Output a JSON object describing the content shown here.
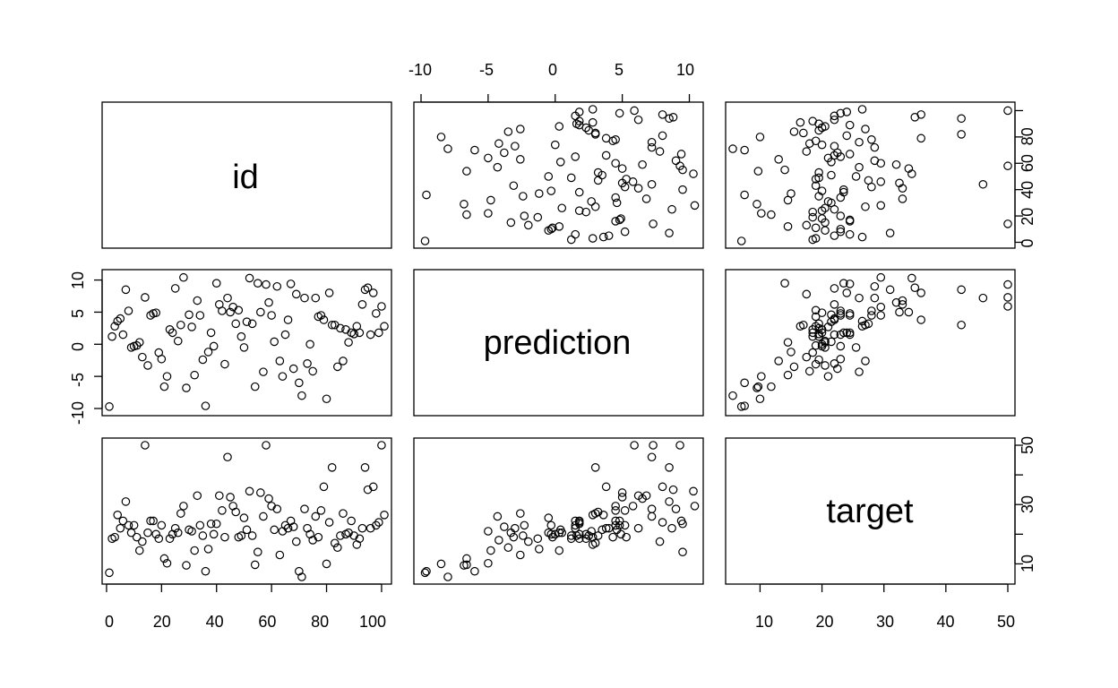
{
  "chart_data": {
    "type": "scatter",
    "kind": "scatterplot-matrix",
    "title": "",
    "variables": [
      "id",
      "prediction",
      "target"
    ],
    "ranges": {
      "id": [
        1,
        101
      ],
      "prediction": [
        -10,
        10.5
      ],
      "target": [
        5.6,
        50
      ]
    },
    "ticks": {
      "id": [
        0,
        20,
        40,
        60,
        80,
        100
      ],
      "prediction": [
        -10,
        -5,
        0,
        5,
        10
      ],
      "target": [
        10,
        20,
        30,
        40,
        50
      ]
    },
    "tick_labels": {
      "id": [
        "0",
        "20",
        "40",
        "60",
        "80",
        "100"
      ],
      "prediction": [
        "-10",
        "-5",
        "0",
        "5",
        "10"
      ],
      "target_bottom": [
        "10",
        "20",
        "30",
        "40",
        "50"
      ],
      "id_right": [
        "0",
        "20",
        "40",
        "60",
        "80"
      ],
      "prediction_left": [
        "-10",
        "-5",
        "0",
        "5",
        "10"
      ],
      "target_right": [
        "10",
        "30",
        "50"
      ]
    },
    "grid": false,
    "legend": "none",
    "points": [
      {
        "id": 1,
        "prediction": -9.7,
        "target": 7.0
      },
      {
        "id": 2,
        "prediction": 1.2,
        "target": 18.5
      },
      {
        "id": 3,
        "prediction": 2.8,
        "target": 19.0
      },
      {
        "id": 4,
        "prediction": 3.6,
        "target": 26.5
      },
      {
        "id": 5,
        "prediction": 4.0,
        "target": 22.0
      },
      {
        "id": 6,
        "prediction": 1.5,
        "target": 24.5
      },
      {
        "id": 7,
        "prediction": 8.5,
        "target": 31.0
      },
      {
        "id": 8,
        "prediction": 5.2,
        "target": 23.0
      },
      {
        "id": 9,
        "prediction": -0.5,
        "target": 20.5
      },
      {
        "id": 10,
        "prediction": -0.3,
        "target": 23.0
      },
      {
        "id": 11,
        "prediction": -0.2,
        "target": 19.0
      },
      {
        "id": 12,
        "prediction": 0.3,
        "target": 14.5
      },
      {
        "id": 13,
        "prediction": -2.0,
        "target": 17.5
      },
      {
        "id": 14,
        "prediction": 7.3,
        "target": 50.0
      },
      {
        "id": 15,
        "prediction": -3.3,
        "target": 20.5
      },
      {
        "id": 16,
        "prediction": 4.5,
        "target": 24.5
      },
      {
        "id": 17,
        "prediction": 4.8,
        "target": 24.5
      },
      {
        "id": 18,
        "prediction": 4.9,
        "target": 20.0
      },
      {
        "id": 19,
        "prediction": -1.3,
        "target": 18.5
      },
      {
        "id": 20,
        "prediction": -2.3,
        "target": 23.0
      },
      {
        "id": 21,
        "prediction": -6.6,
        "target": 11.8
      },
      {
        "id": 22,
        "prediction": -5.0,
        "target": 10.2
      },
      {
        "id": 23,
        "prediction": 2.3,
        "target": 18.5
      },
      {
        "id": 24,
        "prediction": 1.8,
        "target": 20.0
      },
      {
        "id": 25,
        "prediction": 8.7,
        "target": 22.0
      },
      {
        "id": 26,
        "prediction": 0.5,
        "target": 20.5
      },
      {
        "id": 27,
        "prediction": 3.0,
        "target": 27.0
      },
      {
        "id": 28,
        "prediction": 10.4,
        "target": 29.5
      },
      {
        "id": 29,
        "prediction": -6.8,
        "target": 9.5
      },
      {
        "id": 30,
        "prediction": 4.6,
        "target": 21.5
      },
      {
        "id": 31,
        "prediction": 2.7,
        "target": 21.0
      },
      {
        "id": 32,
        "prediction": -4.8,
        "target": 14.5
      },
      {
        "id": 33,
        "prediction": 6.8,
        "target": 33.0
      },
      {
        "id": 34,
        "prediction": 4.5,
        "target": 23.0
      },
      {
        "id": 35,
        "prediction": -2.4,
        "target": 19.5
      },
      {
        "id": 36,
        "prediction": -9.6,
        "target": 7.5
      },
      {
        "id": 37,
        "prediction": -1.2,
        "target": 15.0
      },
      {
        "id": 38,
        "prediction": 1.8,
        "target": 23.5
      },
      {
        "id": 39,
        "prediction": -0.3,
        "target": 20.0
      },
      {
        "id": 40,
        "prediction": 9.5,
        "target": 23.5
      },
      {
        "id": 41,
        "prediction": 6.2,
        "target": 33.0
      },
      {
        "id": 42,
        "prediction": 5.2,
        "target": 28.0
      },
      {
        "id": 43,
        "prediction": -3.1,
        "target": 19.0
      },
      {
        "id": 44,
        "prediction": 7.2,
        "target": 46.0
      },
      {
        "id": 45,
        "prediction": 5.0,
        "target": 32.5
      },
      {
        "id": 46,
        "prediction": 5.8,
        "target": 29.5
      },
      {
        "id": 47,
        "prediction": 3.2,
        "target": 27.5
      },
      {
        "id": 48,
        "prediction": 5.3,
        "target": 19.0
      },
      {
        "id": 49,
        "prediction": 1.2,
        "target": 19.5
      },
      {
        "id": 50,
        "prediction": -0.5,
        "target": 25.5
      },
      {
        "id": 51,
        "prediction": 3.5,
        "target": 21.5
      },
      {
        "id": 52,
        "prediction": 10.3,
        "target": 34.5
      },
      {
        "id": 53,
        "prediction": 3.2,
        "target": 19.5
      },
      {
        "id": 54,
        "prediction": -6.6,
        "target": 9.7
      },
      {
        "id": 55,
        "prediction": 9.5,
        "target": 14.0
      },
      {
        "id": 56,
        "prediction": 5.0,
        "target": 34.0
      },
      {
        "id": 57,
        "prediction": -4.3,
        "target": 26.0
      },
      {
        "id": 58,
        "prediction": 9.3,
        "target": 50.0
      },
      {
        "id": 59,
        "prediction": 6.5,
        "target": 32.0
      },
      {
        "id": 60,
        "prediction": 4.5,
        "target": 29.5
      },
      {
        "id": 61,
        "prediction": 0.4,
        "target": 21.5
      },
      {
        "id": 62,
        "prediction": 9.0,
        "target": 28.5
      },
      {
        "id": 63,
        "prediction": -2.6,
        "target": 13.0
      },
      {
        "id": 64,
        "prediction": -5.0,
        "target": 21.0
      },
      {
        "id": 65,
        "prediction": 1.5,
        "target": 23.0
      },
      {
        "id": 66,
        "prediction": 3.8,
        "target": 22.0
      },
      {
        "id": 67,
        "prediction": 9.4,
        "target": 24.5
      },
      {
        "id": 68,
        "prediction": -3.8,
        "target": 22.5
      },
      {
        "id": 69,
        "prediction": 7.8,
        "target": 17.5
      },
      {
        "id": 70,
        "prediction": -6.0,
        "target": 7.5
      },
      {
        "id": 71,
        "prediction": -8.0,
        "target": 5.6
      },
      {
        "id": 72,
        "prediction": 7.2,
        "target": 28.5
      },
      {
        "id": 73,
        "prediction": -3.0,
        "target": 22.0
      },
      {
        "id": 74,
        "prediction": 0.0,
        "target": 20.0
      },
      {
        "id": 75,
        "prediction": -4.2,
        "target": 18.0
      },
      {
        "id": 76,
        "prediction": 7.2,
        "target": 26.0
      },
      {
        "id": 77,
        "prediction": 4.3,
        "target": 19.0
      },
      {
        "id": 78,
        "prediction": 4.5,
        "target": 28.0
      },
      {
        "id": 79,
        "prediction": 3.8,
        "target": 36.0
      },
      {
        "id": 80,
        "prediction": -8.5,
        "target": 10.0
      },
      {
        "id": 81,
        "prediction": 8.0,
        "target": 24.0
      },
      {
        "id": 82,
        "prediction": 3.0,
        "target": 42.5
      },
      {
        "id": 83,
        "prediction": 3.0,
        "target": 17.0
      },
      {
        "id": 84,
        "prediction": -3.5,
        "target": 15.5
      },
      {
        "id": 85,
        "prediction": 2.5,
        "target": 19.5
      },
      {
        "id": 86,
        "prediction": -2.6,
        "target": 27.0
      },
      {
        "id": 87,
        "prediction": 2.3,
        "target": 20.0
      },
      {
        "id": 88,
        "prediction": 0.3,
        "target": 20.5
      },
      {
        "id": 89,
        "prediction": 1.8,
        "target": 24.5
      },
      {
        "id": 90,
        "prediction": 1.6,
        "target": 19.5
      },
      {
        "id": 91,
        "prediction": 2.8,
        "target": 16.5
      },
      {
        "id": 92,
        "prediction": 1.8,
        "target": 18.5
      },
      {
        "id": 93,
        "prediction": 6.2,
        "target": 22.0
      },
      {
        "id": 94,
        "prediction": 8.5,
        "target": 42.5
      },
      {
        "id": 95,
        "prediction": 8.8,
        "target": 35.0
      },
      {
        "id": 96,
        "prediction": 1.5,
        "target": 22.0
      },
      {
        "id": 97,
        "prediction": 8.0,
        "target": 36.0
      },
      {
        "id": 98,
        "prediction": 4.8,
        "target": 23.0
      },
      {
        "id": 99,
        "prediction": 1.8,
        "target": 24.0
      },
      {
        "id": 100,
        "prediction": 5.9,
        "target": 50.0
      },
      {
        "id": 101,
        "prediction": 2.8,
        "target": 26.5
      }
    ]
  }
}
